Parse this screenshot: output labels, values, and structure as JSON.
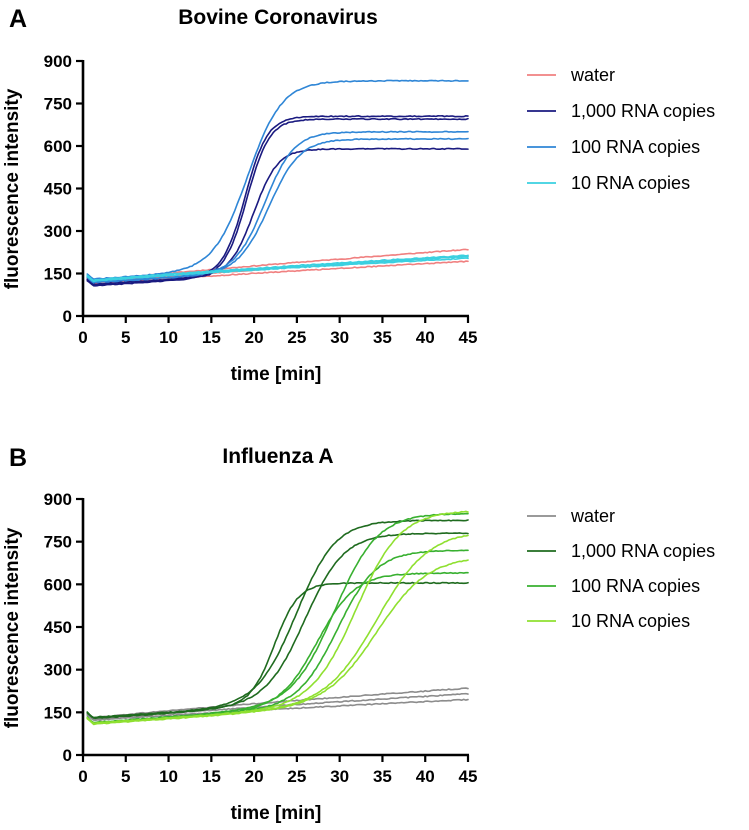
{
  "chart_data": [
    {
      "panel_label": "A",
      "type": "line",
      "title": "Bovine Coronavirus",
      "xlabel": "time [min]",
      "ylabel": "fluorescence intensity",
      "xlim": [
        0,
        45
      ],
      "ylim": [
        0,
        900
      ],
      "xticks": [
        0,
        5,
        10,
        15,
        20,
        25,
        30,
        35,
        40,
        45
      ],
      "yticks": [
        0,
        150,
        300,
        450,
        600,
        750,
        900
      ],
      "grid": false,
      "legend_position": "right",
      "legend": [
        {
          "label": "water",
          "color": "#f08080"
        },
        {
          "label": "1,000 RNA copies",
          "color": "#1a1a80"
        },
        {
          "label": "100 RNA copies",
          "color": "#2f86d6"
        },
        {
          "label": "10 RNA copies",
          "color": "#3ad0e0"
        }
      ],
      "series": [
        {
          "name": "water",
          "group": 0,
          "kind": "flat",
          "start": 118,
          "end": 235
        },
        {
          "name": "water",
          "group": 0,
          "kind": "flat",
          "start": 112,
          "end": 212
        },
        {
          "name": "water",
          "group": 0,
          "kind": "flat",
          "start": 108,
          "end": 193
        },
        {
          "name": "1,000 RNA copies",
          "group": 1,
          "kind": "sigmoid",
          "start": 108,
          "base_end": 200,
          "plateau": 705,
          "midpoint": 19.0,
          "width": 1.3
        },
        {
          "name": "1,000 RNA copies",
          "group": 1,
          "kind": "sigmoid",
          "start": 104,
          "base_end": 195,
          "plateau": 695,
          "midpoint": 19.2,
          "width": 1.3
        },
        {
          "name": "1,000 RNA copies",
          "group": 1,
          "kind": "sigmoid",
          "start": 110,
          "base_end": 190,
          "plateau": 590,
          "midpoint": 20.0,
          "width": 1.4
        },
        {
          "name": "100 RNA copies",
          "group": 2,
          "kind": "sigmoid",
          "start": 128,
          "base_end": 215,
          "plateau": 830,
          "midpoint": 19.3,
          "width": 2.0
        },
        {
          "name": "100 RNA copies",
          "group": 2,
          "kind": "sigmoid",
          "start": 118,
          "base_end": 200,
          "plateau": 650,
          "midpoint": 21.3,
          "width": 1.7
        },
        {
          "name": "100 RNA copies",
          "group": 2,
          "kind": "sigmoid",
          "start": 116,
          "base_end": 198,
          "plateau": 625,
          "midpoint": 21.8,
          "width": 1.8
        },
        {
          "name": "10 RNA copies",
          "group": 3,
          "kind": "flat",
          "start": 118,
          "end": 210
        },
        {
          "name": "10 RNA copies",
          "group": 3,
          "kind": "flat",
          "start": 120,
          "end": 204
        },
        {
          "name": "10 RNA copies",
          "group": 3,
          "kind": "flat",
          "start": 122,
          "end": 214
        }
      ]
    },
    {
      "panel_label": "B",
      "type": "line",
      "title": "Influenza A",
      "xlabel": "time [min]",
      "ylabel": "fluorescence intensity",
      "xlim": [
        0,
        45
      ],
      "ylim": [
        0,
        900
      ],
      "xticks": [
        0,
        5,
        10,
        15,
        20,
        25,
        30,
        35,
        40,
        45
      ],
      "yticks": [
        0,
        150,
        300,
        450,
        600,
        750,
        900
      ],
      "grid": false,
      "legend_position": "right",
      "legend": [
        {
          "label": "water",
          "color": "#8c8c8c"
        },
        {
          "label": "1,000 RNA copies",
          "color": "#1f6b1f"
        },
        {
          "label": "100 RNA copies",
          "color": "#38b030"
        },
        {
          "label": "10 RNA copies",
          "color": "#8fe030"
        }
      ],
      "series": [
        {
          "name": "water",
          "group": 0,
          "kind": "flat",
          "start": 125,
          "end": 235
        },
        {
          "name": "water",
          "group": 0,
          "kind": "flat",
          "start": 120,
          "end": 215
        },
        {
          "name": "water",
          "group": 0,
          "kind": "flat",
          "start": 118,
          "end": 195
        },
        {
          "name": "1,000 RNA copies",
          "group": 1,
          "kind": "sigmoid",
          "start": 130,
          "base_end": 220,
          "plateau": 605,
          "midpoint": 22.4,
          "width": 1.4
        },
        {
          "name": "1,000 RNA copies",
          "group": 1,
          "kind": "sigmoid",
          "start": 128,
          "base_end": 220,
          "plateau": 825,
          "midpoint": 25.0,
          "width": 2.3
        },
        {
          "name": "1,000 RNA copies",
          "group": 1,
          "kind": "sigmoid",
          "start": 126,
          "base_end": 220,
          "plateau": 780,
          "midpoint": 26.0,
          "width": 2.3
        },
        {
          "name": "100 RNA copies",
          "group": 2,
          "kind": "sigmoid",
          "start": 112,
          "base_end": 210,
          "plateau": 850,
          "midpoint": 29.5,
          "width": 2.5
        },
        {
          "name": "100 RNA copies",
          "group": 2,
          "kind": "sigmoid",
          "start": 110,
          "base_end": 205,
          "plateau": 720,
          "midpoint": 29.8,
          "width": 2.3
        },
        {
          "name": "100 RNA copies",
          "group": 2,
          "kind": "sigmoid",
          "start": 108,
          "base_end": 205,
          "plateau": 640,
          "midpoint": 27.5,
          "width": 2.2
        },
        {
          "name": "10 RNA copies",
          "group": 3,
          "kind": "sigmoid",
          "start": 110,
          "base_end": 200,
          "plateau": 860,
          "midpoint": 32.0,
          "width": 2.6
        },
        {
          "name": "10 RNA copies",
          "group": 3,
          "kind": "sigmoid",
          "start": 108,
          "base_end": 200,
          "plateau": 790,
          "midpoint": 34.5,
          "width": 3.0
        },
        {
          "name": "10 RNA copies",
          "group": 3,
          "kind": "sigmoid",
          "start": 106,
          "base_end": 200,
          "plateau": 700,
          "midpoint": 34.5,
          "width": 3.0
        }
      ]
    }
  ]
}
